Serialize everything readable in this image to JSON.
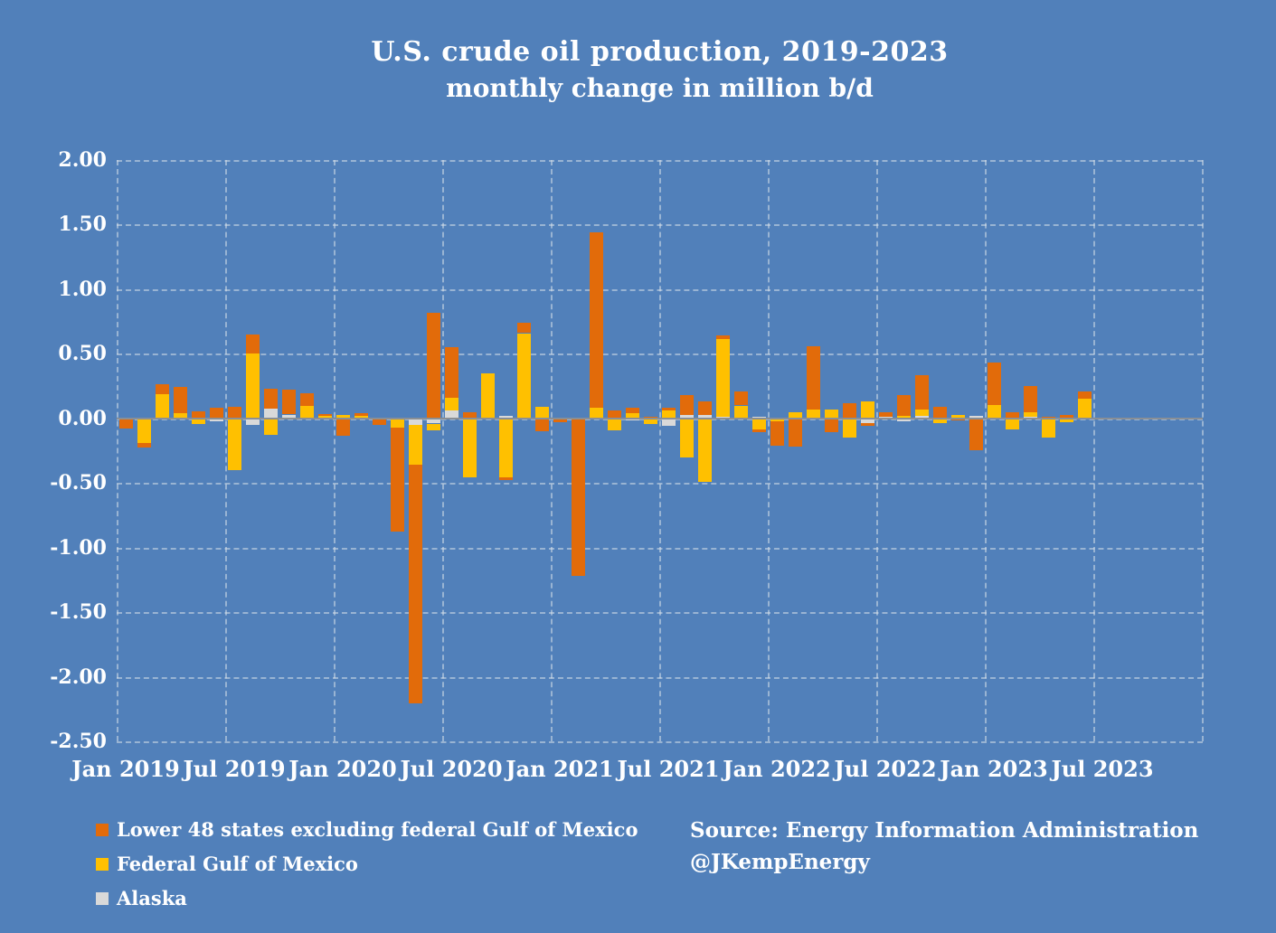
{
  "title": "U.S. crude oil production, 2019-2023",
  "subtitle": "monthly change in million b/d",
  "source": {
    "line1": "Source:  Energy Information Administration",
    "line2": "@JKempEnergy"
  },
  "legend": {
    "items": [
      {
        "label": "Lower 48 states excluding federal Gulf of Mexico",
        "color": "#e26b0a"
      },
      {
        "label": "Federal Gulf of Mexico",
        "color": "#ffc000"
      },
      {
        "label": "Alaska",
        "color": "#d9d9d9"
      }
    ]
  },
  "colors": {
    "background": "#5180ba",
    "lower48": "#e26b0a",
    "gulf": "#ffc000",
    "alaska": "#d9d9d9",
    "gridline": "#d6dee8",
    "zero_line": "#8a8f95",
    "text": "#ffffff"
  },
  "chart_data": {
    "type": "bar",
    "subtype": "stacked-column",
    "title": "U.S. crude oil production, 2019-2023",
    "subtitle": "monthly change in million b/d",
    "ylabel": "",
    "xlabel": "",
    "ylim": [
      -2.5,
      2.0
    ],
    "ytick_step": 0.5,
    "ytick_labels": [
      "2.00",
      "1.50",
      "1.00",
      "0.50",
      "0.00",
      "-0.50",
      "-1.00",
      "-1.50",
      "-2.00",
      "-2.50"
    ],
    "xtick_labels": [
      "Jan 2019",
      "Jul 2019",
      "Jan 2020",
      "Jul 2020",
      "Jan 2021",
      "Jul 2021",
      "Jan 2022",
      "Jul 2022",
      "Jan 2023",
      "Jul 2023"
    ],
    "grid": "dashed, horizontal every 0.5, vertical every 6 months",
    "legend_position": "bottom-left",
    "stack_order_from_axis": [
      "alaska",
      "gulf",
      "lower48"
    ],
    "series_names": [
      "Lower 48 states excluding federal Gulf of Mexico",
      "Federal Gulf of Mexico",
      "Alaska"
    ],
    "columns": [
      "month",
      "lower48",
      "gulf",
      "alaska"
    ],
    "months": [
      [
        "Jan 2019",
        -0.08,
        0,
        0
      ],
      [
        "Feb 2019",
        -0.035,
        -0.19,
        0
      ],
      [
        "Mar 2019",
        0.08,
        0.185,
        0
      ],
      [
        "Apr 2019",
        0.205,
        0.04,
        0
      ],
      [
        "May 2019",
        0.055,
        -0.045,
        0
      ],
      [
        "Jun 2019",
        0.085,
        0,
        -0.025
      ],
      [
        "Jul 2019",
        0.09,
        -0.4,
        0
      ],
      [
        "Aug 2019",
        0.15,
        0.5,
        -0.05
      ],
      [
        "Sep 2019",
        0.155,
        -0.125,
        0.075
      ],
      [
        "Oct 2019",
        0.19,
        0,
        0.03
      ],
      [
        "Nov 2019",
        0.1,
        0.095,
        0
      ],
      [
        "Dec 2019",
        0.015,
        0.02,
        0
      ],
      [
        "Jan 2020",
        -0.135,
        0.025,
        0
      ],
      [
        "Feb 2020",
        0.02,
        0.02,
        0
      ],
      [
        "Mar 2020",
        -0.05,
        0,
        0
      ],
      [
        "Apr 2020",
        -0.81,
        -0.07,
        0
      ],
      [
        "May 2020",
        -1.85,
        -0.31,
        -0.05
      ],
      [
        "Jun 2020",
        0.82,
        -0.05,
        -0.04
      ],
      [
        "Jul 2020",
        0.39,
        0.1,
        0.06
      ],
      [
        "Aug 2020",
        0.045,
        -0.455,
        0
      ],
      [
        "Sep 2020",
        0,
        0.35,
        0
      ],
      [
        "Oct 2020",
        -0.025,
        -0.455,
        0.02
      ],
      [
        "Nov 2020",
        0.08,
        0.66,
        0
      ],
      [
        "Dec 2020",
        -0.1,
        0.09,
        0
      ],
      [
        "Jan 2021",
        -0.03,
        0,
        0
      ],
      [
        "Feb 2021",
        -1.22,
        0,
        0
      ],
      [
        "Mar 2021",
        1.36,
        0.08,
        0
      ],
      [
        "Apr 2021",
        0.065,
        -0.095,
        0
      ],
      [
        "May 2021",
        0.04,
        0.04,
        -0.015
      ],
      [
        "Jun 2021",
        0.015,
        -0.045,
        0
      ],
      [
        "Jul 2021",
        0.02,
        0.06,
        -0.055
      ],
      [
        "Aug 2021",
        0.155,
        -0.3,
        0.025
      ],
      [
        "Sep 2021",
        0.11,
        -0.49,
        0.025
      ],
      [
        "Oct 2021",
        0.025,
        0.605,
        0.01
      ],
      [
        "Nov 2021",
        0.11,
        0.1,
        0
      ],
      [
        "Dec 2021",
        -0.025,
        -0.085,
        0.015
      ],
      [
        "Jan 2022",
        -0.185,
        -0.025,
        0
      ],
      [
        "Feb 2022",
        -0.22,
        0.05,
        0
      ],
      [
        "Mar 2022",
        0.49,
        0.07,
        0
      ],
      [
        "Apr 2022",
        -0.11,
        0.07,
        0
      ],
      [
        "May 2022",
        0.115,
        -0.15,
        0
      ],
      [
        "Jun 2022",
        -0.025,
        0.13,
        -0.035
      ],
      [
        "Jul 2022",
        0.035,
        0,
        0.015
      ],
      [
        "Aug 2022",
        0.16,
        0.02,
        -0.025
      ],
      [
        "Sep 2022",
        0.265,
        0.05,
        0.02
      ],
      [
        "Oct 2022",
        0.09,
        -0.035,
        0
      ],
      [
        "Nov 2022",
        -0.015,
        0.025,
        0
      ],
      [
        "Dec 2022",
        -0.25,
        0,
        0.02
      ],
      [
        "Jan 2023",
        0.33,
        0.105,
        0
      ],
      [
        "Feb 2023",
        0.045,
        -0.085,
        0
      ],
      [
        "Mar 2023",
        0.2,
        0.04,
        0.01
      ],
      [
        "Apr 2023",
        0.015,
        -0.15,
        0
      ],
      [
        "May 2023",
        0.03,
        -0.03,
        0
      ],
      [
        "Jun 2023",
        0.06,
        0.15,
        0
      ]
    ]
  }
}
